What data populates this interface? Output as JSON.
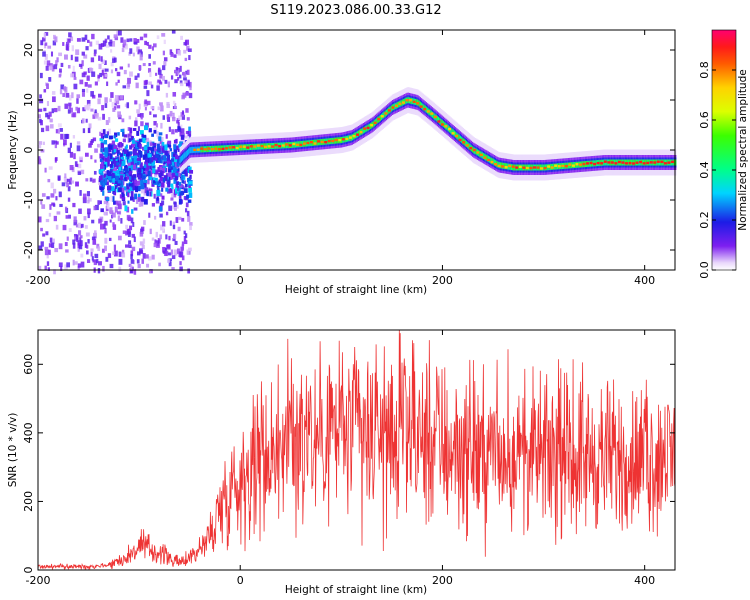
{
  "figure": {
    "title": "S119.2023.086.00.33.G12"
  },
  "chart_data": [
    {
      "type": "heatmap",
      "xlabel": "Height of straight line (km)",
      "ylabel": "Frequency (Hz)",
      "xlim": [
        -200,
        430
      ],
      "ylim": [
        -24,
        24
      ],
      "xticks": [
        -200,
        0,
        200,
        400
      ],
      "yticks": [
        -20,
        -10,
        0,
        10,
        20
      ],
      "colorbar": {
        "label": "Normalized spectral amplitude",
        "range": [
          0.0,
          0.96
        ],
        "ticks": [
          0.0,
          0.2,
          0.4,
          0.6,
          0.8
        ]
      },
      "ridge": {
        "x": [
          -60,
          -50,
          0,
          50,
          100,
          110,
          130,
          150,
          165,
          175,
          190,
          210,
          230,
          255,
          270,
          300,
          330,
          360,
          390,
          430
        ],
        "y": [
          -2,
          0,
          0.5,
          1,
          2,
          2.5,
          5,
          8.5,
          10,
          9.5,
          7,
          3.5,
          0,
          -3,
          -3.5,
          -3.5,
          -3,
          -2.5,
          -2.5,
          -2.5
        ]
      }
    },
    {
      "type": "line",
      "xlabel": "Height of straight line (km)",
      "ylabel": "SNR (10 * v/v)",
      "xlim": [
        -200,
        430
      ],
      "ylim": [
        0,
        700
      ],
      "xticks": [
        -200,
        0,
        200,
        400
      ],
      "yticks": [
        0,
        200,
        400,
        600
      ],
      "series": [
        {
          "color": "#ee3333",
          "x": [
            -200,
            -150,
            -130,
            -110,
            -100,
            -80,
            -60,
            -40,
            -30,
            -20,
            -10,
            0,
            10,
            20,
            50,
            80,
            100,
            150,
            200,
            250,
            300,
            350,
            400,
            430
          ],
          "y": [
            10,
            10,
            15,
            40,
            70,
            50,
            20,
            60,
            100,
            180,
            240,
            260,
            300,
            330,
            380,
            400,
            420,
            390,
            360,
            330,
            330,
            330,
            320,
            330
          ]
        }
      ]
    }
  ]
}
